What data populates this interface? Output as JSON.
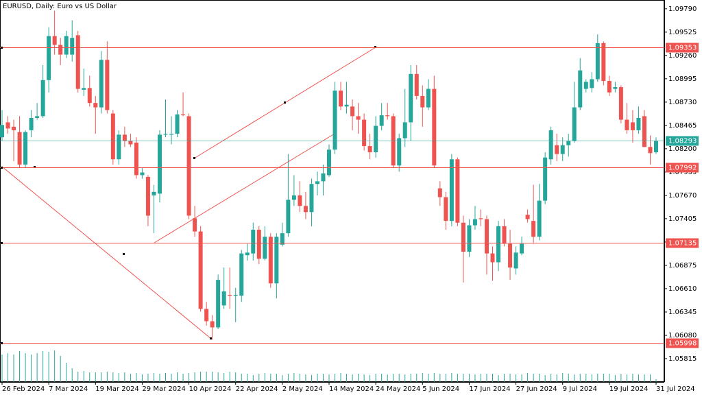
{
  "chart_data": {
    "type": "candlestick",
    "title": "EURUSD, Daily:  Euro vs US Dollar",
    "up_color": "#26a69a",
    "down_color": "#ef5350",
    "volume_color": "#26a69a",
    "ylim": [
      1.0555,
      1.0989
    ],
    "yticks": [
      {
        "value": 1.0979,
        "label": "1.09790"
      },
      {
        "value": 1.09525,
        "label": "1.09525"
      },
      {
        "value": 1.0926,
        "label": "1.09260"
      },
      {
        "value": 1.08995,
        "label": "1.08995"
      },
      {
        "value": 1.0873,
        "label": "1.08730"
      },
      {
        "value": 1.08465,
        "label": "1.08465"
      },
      {
        "value": 1.082,
        "label": "1.08200"
      },
      {
        "value": 1.07935,
        "label": "1.07935"
      },
      {
        "value": 1.0767,
        "label": "1.07670"
      },
      {
        "value": 1.07405,
        "label": "1.07405"
      },
      {
        "value": 1.0714,
        "label": "1.07140"
      },
      {
        "value": 1.06875,
        "label": "1.06875"
      },
      {
        "value": 1.0661,
        "label": "1.06610"
      },
      {
        "value": 1.06345,
        "label": "1.06345"
      },
      {
        "value": 1.0608,
        "label": "1.06080"
      },
      {
        "value": 1.05815,
        "label": "1.05815"
      }
    ],
    "levels": [
      {
        "value": 1.09353,
        "color": "#ef5350"
      },
      {
        "value": 1.07992,
        "color": "#ef5350"
      },
      {
        "value": 1.07135,
        "color": "#ef5350"
      },
      {
        "value": 1.05998,
        "color": "#ef5350"
      }
    ],
    "current_price": {
      "value": 1.08293,
      "color": "#26a69a"
    },
    "categories": [
      "26 Feb 2024",
      null,
      null,
      null,
      null,
      null,
      null,
      null,
      "7 Mar 2024",
      null,
      null,
      null,
      null,
      null,
      null,
      null,
      "19 Mar 2024",
      null,
      null,
      null,
      null,
      null,
      null,
      null,
      "29 Mar 2024",
      null,
      null,
      null,
      null,
      null,
      null,
      null,
      "10 Apr 2024",
      null,
      null,
      null,
      null,
      null,
      null,
      null,
      "22 Apr 2024",
      null,
      null,
      null,
      null,
      null,
      null,
      null,
      "2 May 2024",
      null,
      null,
      null,
      null,
      null,
      null,
      null,
      "14 May 2024",
      null,
      null,
      null,
      null,
      null,
      null,
      null,
      "24 May 2024",
      null,
      null,
      null,
      null,
      null,
      null,
      null,
      "5 Jun 2024",
      null,
      null,
      null,
      null,
      null,
      null,
      null,
      "17 Jun 2024",
      null,
      null,
      null,
      null,
      null,
      null,
      null,
      "27 Jun 2024",
      null,
      null,
      null,
      null,
      null,
      null,
      null,
      "9 Jul 2024",
      null,
      null,
      null,
      null,
      null,
      null,
      null,
      "19 Jul 2024",
      null,
      null,
      null,
      null,
      null,
      null,
      null,
      "31 Jul 2024"
    ],
    "candles": [
      {
        "o": 1.0833,
        "h": 1.0864,
        "l": 1.0829,
        "c": 1.0847
      },
      {
        "o": 1.085,
        "h": 1.0857,
        "l": 1.0837,
        "c": 1.0843
      },
      {
        "o": 1.0845,
        "h": 1.0853,
        "l": 1.0806,
        "c": 1.0841
      },
      {
        "o": 1.0839,
        "h": 1.0857,
        "l": 1.0798,
        "c": 1.0802
      },
      {
        "o": 1.0802,
        "h": 1.0841,
        "l": 1.0798,
        "c": 1.0839
      },
      {
        "o": 1.0841,
        "h": 1.0864,
        "l": 1.0833,
        "c": 1.0855
      },
      {
        "o": 1.0855,
        "h": 1.0872,
        "l": 1.0853,
        "c": 1.0857
      },
      {
        "o": 1.0857,
        "h": 1.0915,
        "l": 1.0855,
        "c": 1.0898
      },
      {
        "o": 1.0898,
        "h": 1.0958,
        "l": 1.0884,
        "c": 1.0948
      },
      {
        "o": 1.0948,
        "h": 1.0977,
        "l": 1.0927,
        "c": 1.0938
      },
      {
        "o": 1.0938,
        "h": 1.0946,
        "l": 1.0915,
        "c": 1.0927
      },
      {
        "o": 1.0927,
        "h": 1.0954,
        "l": 1.0923,
        "c": 1.0948
      },
      {
        "o": 1.0927,
        "h": 1.0966,
        "l": 1.0919,
        "c": 1.0946
      },
      {
        "o": 1.0949,
        "h": 1.0954,
        "l": 1.0884,
        "c": 1.0888
      },
      {
        "o": 1.0887,
        "h": 1.0911,
        "l": 1.088,
        "c": 1.0889
      },
      {
        "o": 1.0889,
        "h": 1.0903,
        "l": 1.0868,
        "c": 1.0872
      },
      {
        "o": 1.0872,
        "h": 1.088,
        "l": 1.0837,
        "c": 1.0867
      },
      {
        "o": 1.0867,
        "h": 1.0931,
        "l": 1.086,
        "c": 1.0921
      },
      {
        "o": 1.0921,
        "h": 1.0942,
        "l": 1.086,
        "c": 1.0864
      },
      {
        "o": 1.086,
        "h": 1.0864,
        "l": 1.0802,
        "c": 1.0808
      },
      {
        "o": 1.0808,
        "h": 1.0841,
        "l": 1.0802,
        "c": 1.0836
      },
      {
        "o": 1.0836,
        "h": 1.0845,
        "l": 1.0822,
        "c": 1.0829
      },
      {
        "o": 1.0829,
        "h": 1.0837,
        "l": 1.0822,
        "c": 1.0825
      },
      {
        "o": 1.0827,
        "h": 1.0833,
        "l": 1.0786,
        "c": 1.079
      },
      {
        "o": 1.079,
        "h": 1.0798,
        "l": 1.0786,
        "c": 1.0793
      },
      {
        "o": 1.0788,
        "h": 1.079,
        "l": 1.0732,
        "c": 1.0744
      },
      {
        "o": 1.0767,
        "h": 1.0779,
        "l": 1.0724,
        "c": 1.0771
      },
      {
        "o": 1.0769,
        "h": 1.0841,
        "l": 1.0759,
        "c": 1.0836
      },
      {
        "o": 1.0836,
        "h": 1.0876,
        "l": 1.0833,
        "c": 1.0837
      },
      {
        "o": 1.0836,
        "h": 1.0857,
        "l": 1.0825,
        "c": 1.0837
      },
      {
        "o": 1.0837,
        "h": 1.0864,
        "l": 1.0833,
        "c": 1.0859
      },
      {
        "o": 1.0859,
        "h": 1.0884,
        "l": 1.0857,
        "c": 1.0858
      },
      {
        "o": 1.0857,
        "h": 1.086,
        "l": 1.074,
        "c": 1.0744
      },
      {
        "o": 1.0741,
        "h": 1.0755,
        "l": 1.072,
        "c": 1.0726
      },
      {
        "o": 1.0726,
        "h": 1.0732,
        "l": 1.0635,
        "c": 1.0638
      },
      {
        "o": 1.0638,
        "h": 1.0646,
        "l": 1.0619,
        "c": 1.0624
      },
      {
        "o": 1.0624,
        "h": 1.0631,
        "l": 1.0603,
        "c": 1.0617
      },
      {
        "o": 1.0617,
        "h": 1.0677,
        "l": 1.0615,
        "c": 1.0671
      },
      {
        "o": 1.0642,
        "h": 1.0685,
        "l": 1.0638,
        "c": 1.0658
      },
      {
        "o": 1.0654,
        "h": 1.0685,
        "l": 1.0638,
        "c": 1.0653
      },
      {
        "o": 1.0653,
        "h": 1.0662,
        "l": 1.0623,
        "c": 1.0654
      },
      {
        "o": 1.0653,
        "h": 1.0705,
        "l": 1.0646,
        "c": 1.0701
      },
      {
        "o": 1.0699,
        "h": 1.0712,
        "l": 1.0693,
        "c": 1.0702
      },
      {
        "o": 1.0701,
        "h": 1.0736,
        "l": 1.0693,
        "c": 1.0728
      },
      {
        "o": 1.0728,
        "h": 1.0732,
        "l": 1.0689,
        "c": 1.0695
      },
      {
        "o": 1.0695,
        "h": 1.0732,
        "l": 1.0693,
        "c": 1.072
      },
      {
        "o": 1.072,
        "h": 1.0724,
        "l": 1.0662,
        "c": 1.0667
      },
      {
        "o": 1.0667,
        "h": 1.0724,
        "l": 1.065,
        "c": 1.072
      },
      {
        "o": 1.0711,
        "h": 1.0736,
        "l": 1.0709,
        "c": 1.0724
      },
      {
        "o": 1.0724,
        "h": 1.0814,
        "l": 1.072,
        "c": 1.0762
      },
      {
        "o": 1.0762,
        "h": 1.079,
        "l": 1.0755,
        "c": 1.0767
      },
      {
        "o": 1.0767,
        "h": 1.0783,
        "l": 1.0748,
        "c": 1.0755
      },
      {
        "o": 1.0755,
        "h": 1.0771,
        "l": 1.074,
        "c": 1.0748
      },
      {
        "o": 1.0748,
        "h": 1.0786,
        "l": 1.0732,
        "c": 1.078
      },
      {
        "o": 1.078,
        "h": 1.0794,
        "l": 1.0767,
        "c": 1.0783
      },
      {
        "o": 1.0783,
        "h": 1.0802,
        "l": 1.0767,
        "c": 1.0792
      },
      {
        "o": 1.079,
        "h": 1.0825,
        "l": 1.0788,
        "c": 1.0819
      },
      {
        "o": 1.0819,
        "h": 1.0896,
        "l": 1.0814,
        "c": 1.0886
      },
      {
        "o": 1.0886,
        "h": 1.0896,
        "l": 1.0864,
        "c": 1.0868
      },
      {
        "o": 1.0868,
        "h": 1.0896,
        "l": 1.086,
        "c": 1.087
      },
      {
        "o": 1.0868,
        "h": 1.0876,
        "l": 1.0841,
        "c": 1.0857
      },
      {
        "o": 1.0857,
        "h": 1.0872,
        "l": 1.0837,
        "c": 1.0853
      },
      {
        "o": 1.0853,
        "h": 1.086,
        "l": 1.0818,
        "c": 1.0823
      },
      {
        "o": 1.0823,
        "h": 1.0837,
        "l": 1.0808,
        "c": 1.0816
      },
      {
        "o": 1.0816,
        "h": 1.0857,
        "l": 1.081,
        "c": 1.0846
      },
      {
        "o": 1.0846,
        "h": 1.0872,
        "l": 1.0841,
        "c": 1.0858
      },
      {
        "o": 1.0858,
        "h": 1.0872,
        "l": 1.0853,
        "c": 1.0857
      },
      {
        "o": 1.0857,
        "h": 1.086,
        "l": 1.0798,
        "c": 1.0801
      },
      {
        "o": 1.0801,
        "h": 1.0837,
        "l": 1.0794,
        "c": 1.0832
      },
      {
        "o": 1.0832,
        "h": 1.0888,
        "l": 1.0822,
        "c": 1.085
      },
      {
        "o": 1.085,
        "h": 1.0915,
        "l": 1.0829,
        "c": 1.0905
      },
      {
        "o": 1.0905,
        "h": 1.0915,
        "l": 1.0876,
        "c": 1.088
      },
      {
        "o": 1.088,
        "h": 1.0892,
        "l": 1.0845,
        "c": 1.0867
      },
      {
        "o": 1.0867,
        "h": 1.0899,
        "l": 1.0864,
        "c": 1.0888
      },
      {
        "o": 1.0888,
        "h": 1.0903,
        "l": 1.0798,
        "c": 1.0801
      },
      {
        "o": 1.0775,
        "h": 1.0783,
        "l": 1.0755,
        "c": 1.0765
      },
      {
        "o": 1.0765,
        "h": 1.0771,
        "l": 1.0728,
        "c": 1.0738
      },
      {
        "o": 1.0738,
        "h": 1.0814,
        "l": 1.0732,
        "c": 1.0808
      },
      {
        "o": 1.0808,
        "h": 1.081,
        "l": 1.0732,
        "c": 1.0736
      },
      {
        "o": 1.0736,
        "h": 1.0744,
        "l": 1.0668,
        "c": 1.0703
      },
      {
        "o": 1.0703,
        "h": 1.074,
        "l": 1.0697,
        "c": 1.0733
      },
      {
        "o": 1.0733,
        "h": 1.0755,
        "l": 1.0728,
        "c": 1.074
      },
      {
        "o": 1.0741,
        "h": 1.0751,
        "l": 1.0732,
        "c": 1.074
      },
      {
        "o": 1.074,
        "h": 1.0744,
        "l": 1.0677,
        "c": 1.0701
      },
      {
        "o": 1.0701,
        "h": 1.0709,
        "l": 1.067,
        "c": 1.0691
      },
      {
        "o": 1.0691,
        "h": 1.0738,
        "l": 1.0681,
        "c": 1.0732
      },
      {
        "o": 1.0732,
        "h": 1.074,
        "l": 1.0709,
        "c": 1.0712
      },
      {
        "o": 1.0712,
        "h": 1.0728,
        "l": 1.0671,
        "c": 1.0685
      },
      {
        "o": 1.0684,
        "h": 1.0709,
        "l": 1.0677,
        "c": 1.0702
      },
      {
        "o": 1.0701,
        "h": 1.072,
        "l": 1.0699,
        "c": 1.0712
      },
      {
        "o": 1.0745,
        "h": 1.0751,
        "l": 1.0736,
        "c": 1.074
      },
      {
        "o": 1.0738,
        "h": 1.0779,
        "l": 1.0712,
        "c": 1.072
      },
      {
        "o": 1.072,
        "h": 1.078,
        "l": 1.0716,
        "c": 1.0761
      },
      {
        "o": 1.0761,
        "h": 1.0816,
        "l": 1.0757,
        "c": 1.081
      },
      {
        "o": 1.0808,
        "h": 1.0845,
        "l": 1.0802,
        "c": 1.0841
      },
      {
        "o": 1.0824,
        "h": 1.0837,
        "l": 1.0806,
        "c": 1.0814
      },
      {
        "o": 1.0814,
        "h": 1.0833,
        "l": 1.0806,
        "c": 1.0824
      },
      {
        "o": 1.0824,
        "h": 1.0837,
        "l": 1.0811,
        "c": 1.0829
      },
      {
        "o": 1.0829,
        "h": 1.0896,
        "l": 1.0827,
        "c": 1.0867
      },
      {
        "o": 1.0867,
        "h": 1.0923,
        "l": 1.0864,
        "c": 1.0909
      },
      {
        "o": 1.0888,
        "h": 1.0899,
        "l": 1.0884,
        "c": 1.0896
      },
      {
        "o": 1.0889,
        "h": 1.0907,
        "l": 1.0884,
        "c": 1.0899
      },
      {
        "o": 1.0899,
        "h": 1.095,
        "l": 1.0896,
        "c": 1.094
      },
      {
        "o": 1.094,
        "h": 1.0942,
        "l": 1.0892,
        "c": 1.0897
      },
      {
        "o": 1.0897,
        "h": 1.0903,
        "l": 1.088,
        "c": 1.0884
      },
      {
        "o": 1.0888,
        "h": 1.0896,
        "l": 1.0884,
        "c": 1.089
      },
      {
        "o": 1.089,
        "h": 1.0892,
        "l": 1.0849,
        "c": 1.0853
      },
      {
        "o": 1.0853,
        "h": 1.0872,
        "l": 1.0837,
        "c": 1.0841
      },
      {
        "o": 1.085,
        "h": 1.0864,
        "l": 1.0827,
        "c": 1.0841
      },
      {
        "o": 1.0841,
        "h": 1.0868,
        "l": 1.0837,
        "c": 1.0855
      },
      {
        "o": 1.0857,
        "h": 1.0864,
        "l": 1.0822,
        "c": 1.0822
      },
      {
        "o": 1.0822,
        "h": 1.0835,
        "l": 1.0802,
        "c": 1.0815
      },
      {
        "o": 1.0816,
        "h": 1.0833,
        "l": 1.0814,
        "c": 1.0829
      }
    ],
    "volume": [
      40,
      42,
      40,
      45,
      42,
      40,
      42,
      45,
      44,
      46,
      38,
      28,
      20,
      15,
      16,
      14,
      14,
      14,
      15,
      14,
      13,
      14,
      12,
      13,
      11,
      12,
      13,
      12,
      13,
      12,
      14,
      12,
      13,
      14,
      15,
      15,
      15,
      14,
      13,
      15,
      14,
      12,
      12,
      10,
      12,
      13,
      12,
      12,
      10,
      12,
      13,
      12,
      11,
      10,
      12,
      12,
      11,
      12,
      13,
      12,
      11,
      12,
      11,
      10,
      12,
      12,
      11,
      12,
      12,
      11,
      12,
      12,
      13,
      12,
      13,
      12,
      12,
      13,
      12,
      12,
      12,
      11,
      12,
      12,
      12,
      10,
      12,
      12,
      11,
      11,
      13,
      12,
      12,
      10,
      12,
      11,
      13,
      12,
      11,
      12,
      12,
      11,
      12,
      12,
      12,
      10,
      12,
      11,
      12,
      11,
      11,
      11,
      4
    ]
  }
}
